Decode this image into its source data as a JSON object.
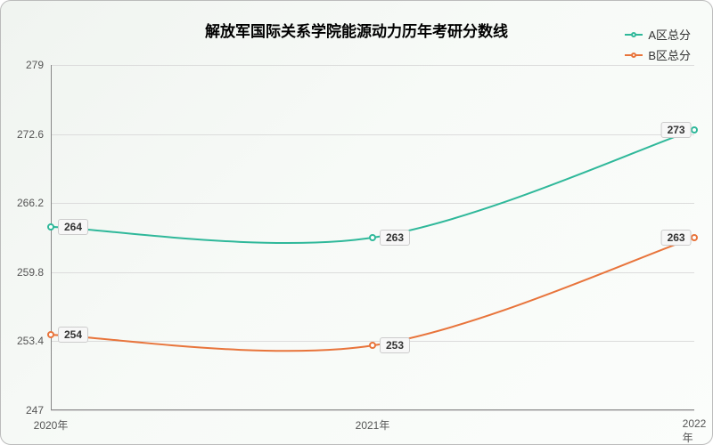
{
  "chart": {
    "type": "line",
    "title": "解放军国际关系学院能源动力历年考研分数线",
    "title_fontsize": 17,
    "background_gradient": [
      "#f0f4f0",
      "#f7faf7",
      "#fbfdfb"
    ],
    "border_color": "#bbbbbb",
    "grid_color": "#dcdcdc",
    "axis_color": "#888888",
    "ylim": [
      247,
      279
    ],
    "yticks": [
      247,
      253.4,
      259.8,
      266.2,
      272.6,
      279
    ],
    "categories": [
      "2020年",
      "2021年",
      "2022年"
    ],
    "tick_fontsize": 12,
    "label_text_color": "#555555",
    "data_label_fontsize": 12,
    "data_label_bg": "#f7f7f7",
    "data_label_border": "#cccccc",
    "legend": {
      "position": "top-right",
      "items": [
        {
          "label": "A区总分",
          "color": "#2fb89a"
        },
        {
          "label": "B区总分",
          "color": "#e8743b"
        }
      ]
    },
    "series": [
      {
        "name": "A区总分",
        "color": "#2fb89a",
        "line_width": 2,
        "marker_size": 8,
        "values": [
          264,
          263,
          273
        ],
        "smooth": true
      },
      {
        "name": "B区总分",
        "color": "#e8743b",
        "line_width": 2,
        "marker_size": 8,
        "values": [
          254,
          253,
          263
        ],
        "smooth": true
      }
    ]
  }
}
